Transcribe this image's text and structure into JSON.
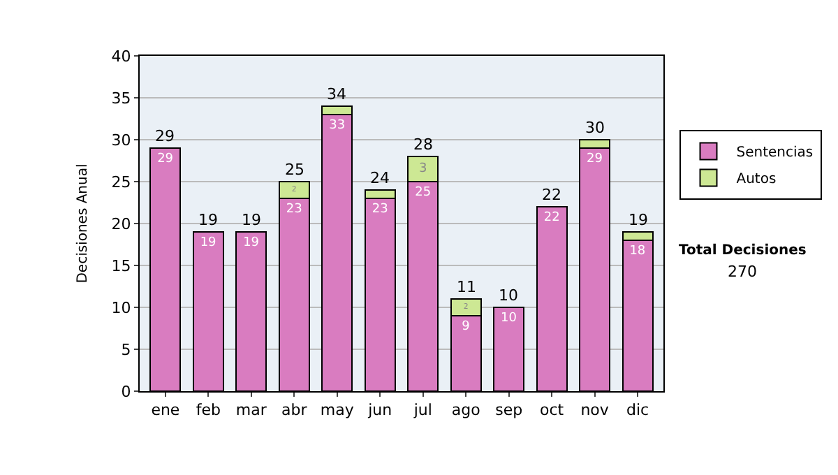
{
  "chart_data": {
    "type": "bar",
    "stacked": true,
    "ylabel": "Decisiones Anual",
    "categories": [
      "ene",
      "feb",
      "mar",
      "abr",
      "may",
      "jun",
      "jul",
      "ago",
      "sep",
      "oct",
      "nov",
      "dic"
    ],
    "series": [
      {
        "name": "Sentencias",
        "color": "#d97cc0",
        "values": [
          29,
          19,
          19,
          23,
          33,
          23,
          25,
          9,
          10,
          22,
          29,
          18
        ],
        "value_labels": [
          "29",
          "19",
          "19",
          "23",
          "33",
          "23",
          "25",
          "9",
          "10",
          "22",
          "29",
          "18"
        ]
      },
      {
        "name": "Autos",
        "color": "#cde894",
        "values": [
          null,
          null,
          null,
          2,
          1,
          1,
          3,
          2,
          null,
          null,
          1,
          1
        ],
        "value_labels": [
          null,
          null,
          null,
          "2",
          null,
          null,
          "3",
          "2",
          null,
          null,
          null,
          null
        ]
      }
    ],
    "totals": [
      "29",
      "19",
      "19",
      "25",
      "34",
      "24",
      "28",
      "11",
      "10",
      "22",
      "30",
      "19"
    ],
    "ylim": [
      0,
      40
    ],
    "yticks": [
      0,
      5,
      10,
      15,
      20,
      25,
      30,
      35,
      40
    ],
    "grid": "y",
    "legend": "right",
    "annotations": [
      "Total Decisiones",
      "270"
    ]
  }
}
